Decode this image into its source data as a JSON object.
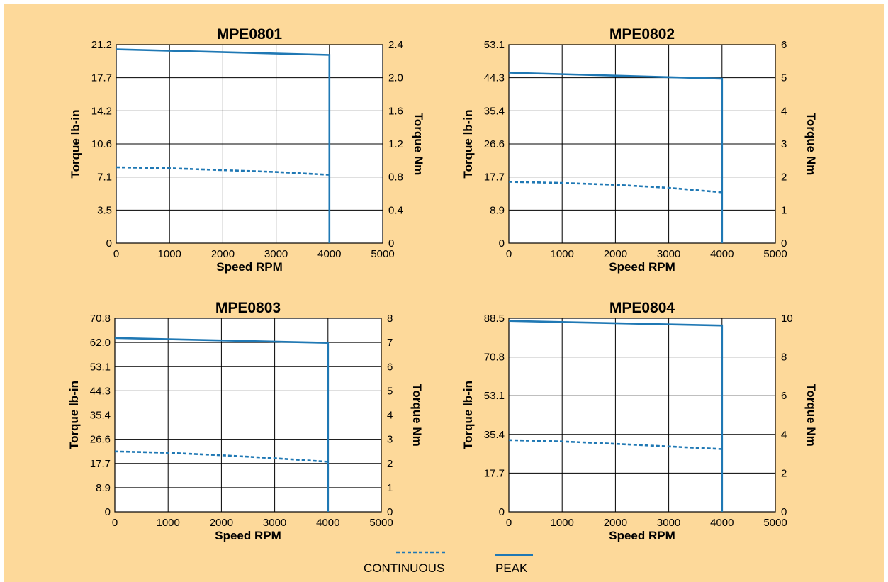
{
  "colors": {
    "background": "#fdd99a",
    "line": "#1f78b4",
    "grid": "#000000",
    "plot_bg": "#ffffff"
  },
  "legend": {
    "continuous_label": "CONTINUOUS",
    "peak_label": "PEAK"
  },
  "chart_data": [
    {
      "type": "line",
      "title": "MPE0801",
      "xlabel": "Speed RPM",
      "ylabel": "Torque lb-in",
      "y2label": "Torque Nm",
      "xlim": [
        0,
        5000
      ],
      "x_ticks": [
        "0",
        "1000",
        "2000",
        "3000",
        "4000",
        "5000"
      ],
      "ylim": [
        0,
        21.2
      ],
      "y_ticks": [
        "0",
        "3.5",
        "7.1",
        "10.6",
        "14.2",
        "17.7",
        "21.2"
      ],
      "y2lim": [
        0,
        2.4
      ],
      "y2_ticks": [
        "0",
        "0.4",
        "0.8",
        "1.2",
        "1.6",
        "2.0",
        "2.4"
      ],
      "grid": true,
      "series": [
        {
          "name": "PEAK",
          "style": "solid",
          "x": [
            0,
            4000,
            4000
          ],
          "y": [
            20.7,
            20.1,
            0
          ]
        },
        {
          "name": "CONTINUOUS",
          "style": "dashed",
          "x": [
            0,
            1000,
            2000,
            3000,
            4000
          ],
          "y": [
            8.1,
            8.0,
            7.8,
            7.6,
            7.3
          ]
        }
      ]
    },
    {
      "type": "line",
      "title": "MPE0802",
      "xlabel": "Speed RPM",
      "ylabel": "Torque lb-in",
      "y2label": "Torque Nm",
      "xlim": [
        0,
        5000
      ],
      "x_ticks": [
        "0",
        "1000",
        "2000",
        "3000",
        "4000",
        "5000"
      ],
      "ylim": [
        0,
        53.1
      ],
      "y_ticks": [
        "0",
        "8.9",
        "17.7",
        "26.6",
        "35.4",
        "44.3",
        "53.1"
      ],
      "y2lim": [
        0,
        6
      ],
      "y2_ticks": [
        "0",
        "1",
        "2",
        "3",
        "4",
        "5",
        "6"
      ],
      "grid": true,
      "series": [
        {
          "name": "PEAK",
          "style": "solid",
          "x": [
            0,
            4000,
            4000
          ],
          "y": [
            45.6,
            44.0,
            0
          ]
        },
        {
          "name": "CONTINUOUS",
          "style": "dashed",
          "x": [
            0,
            1000,
            2000,
            3000,
            4000
          ],
          "y": [
            16.4,
            16.1,
            15.6,
            14.8,
            13.6
          ]
        }
      ]
    },
    {
      "type": "line",
      "title": "MPE0803",
      "xlabel": "Speed RPM",
      "ylabel": "Torque lb-in",
      "y2label": "Torque Nm",
      "xlim": [
        0,
        5000
      ],
      "x_ticks": [
        "0",
        "1000",
        "2000",
        "3000",
        "4000",
        "5000"
      ],
      "ylim": [
        0,
        70.8
      ],
      "y_ticks": [
        "0",
        "8.9",
        "17.7",
        "26.6",
        "35.4",
        "44.3",
        "53.1",
        "62.0",
        "70.8"
      ],
      "y2lim": [
        0,
        8
      ],
      "y2_ticks": [
        "0",
        "1",
        "2",
        "3",
        "4",
        "5",
        "6",
        "7",
        "8"
      ],
      "grid": true,
      "series": [
        {
          "name": "PEAK",
          "style": "solid",
          "x": [
            0,
            4000,
            4000
          ],
          "y": [
            63.6,
            61.8,
            0
          ]
        },
        {
          "name": "CONTINUOUS",
          "style": "dashed",
          "x": [
            0,
            1000,
            2000,
            3000,
            4000
          ],
          "y": [
            22.1,
            21.6,
            20.7,
            19.6,
            18.3
          ]
        }
      ]
    },
    {
      "type": "line",
      "title": "MPE0804",
      "xlabel": "Speed RPM",
      "ylabel": "Torque lb-in",
      "y2label": "Torque Nm",
      "xlim": [
        0,
        5000
      ],
      "x_ticks": [
        "0",
        "1000",
        "2000",
        "3000",
        "4000",
        "5000"
      ],
      "ylim": [
        0,
        88.5
      ],
      "y_ticks": [
        "0",
        "17.7",
        "35.4",
        "53.1",
        "70.8",
        "88.5"
      ],
      "y2lim": [
        0,
        10
      ],
      "y2_ticks": [
        "0",
        "2",
        "4",
        "6",
        "8",
        "10"
      ],
      "grid": true,
      "series": [
        {
          "name": "PEAK",
          "style": "solid",
          "x": [
            0,
            4000,
            4000
          ],
          "y": [
            87.3,
            85.2,
            0
          ]
        },
        {
          "name": "CONTINUOUS",
          "style": "dashed",
          "x": [
            0,
            1000,
            2000,
            3000,
            4000
          ],
          "y": [
            32.8,
            32.2,
            31.1,
            29.9,
            28.7
          ]
        }
      ]
    }
  ]
}
